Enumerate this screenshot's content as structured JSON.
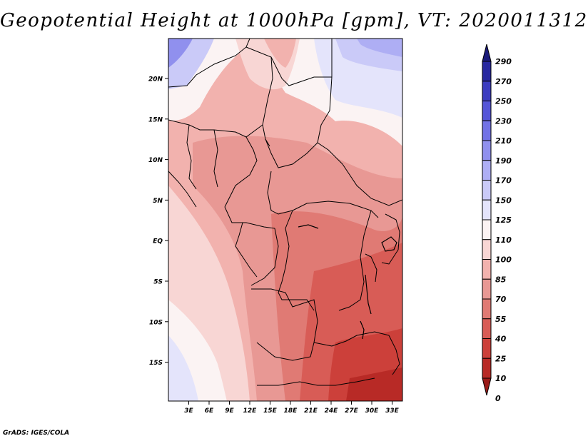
{
  "title": "Geopotential Height at 1000hPa [gpm], VT: 2020011312",
  "footer": "GrADS: IGES/COLA",
  "map": {
    "lat_labels": [
      "20N",
      "15N",
      "10N",
      "5N",
      "EQ",
      "5S",
      "10S",
      "15S"
    ],
    "lon_labels": [
      "3E",
      "6E",
      "9E",
      "12E",
      "15E",
      "18E",
      "21E",
      "24E",
      "27E",
      "30E",
      "33E"
    ]
  },
  "colorbar": {
    "levels": [
      "290",
      "270",
      "250",
      "230",
      "210",
      "190",
      "170",
      "150",
      "125",
      "110",
      "100",
      "85",
      "70",
      "55",
      "40",
      "25",
      "10",
      "0"
    ],
    "colors": [
      "#1a1a7a",
      "#2828a0",
      "#3c3cc0",
      "#5555d8",
      "#7272e6",
      "#9090ee",
      "#aeaef4",
      "#cacaf8",
      "#e4e4fb",
      "#fbf3f3",
      "#f8d6d4",
      "#f2b2ae",
      "#e89894",
      "#e07a74",
      "#d85c56",
      "#cc403a",
      "#b82a26",
      "#9a1a18"
    ]
  }
}
